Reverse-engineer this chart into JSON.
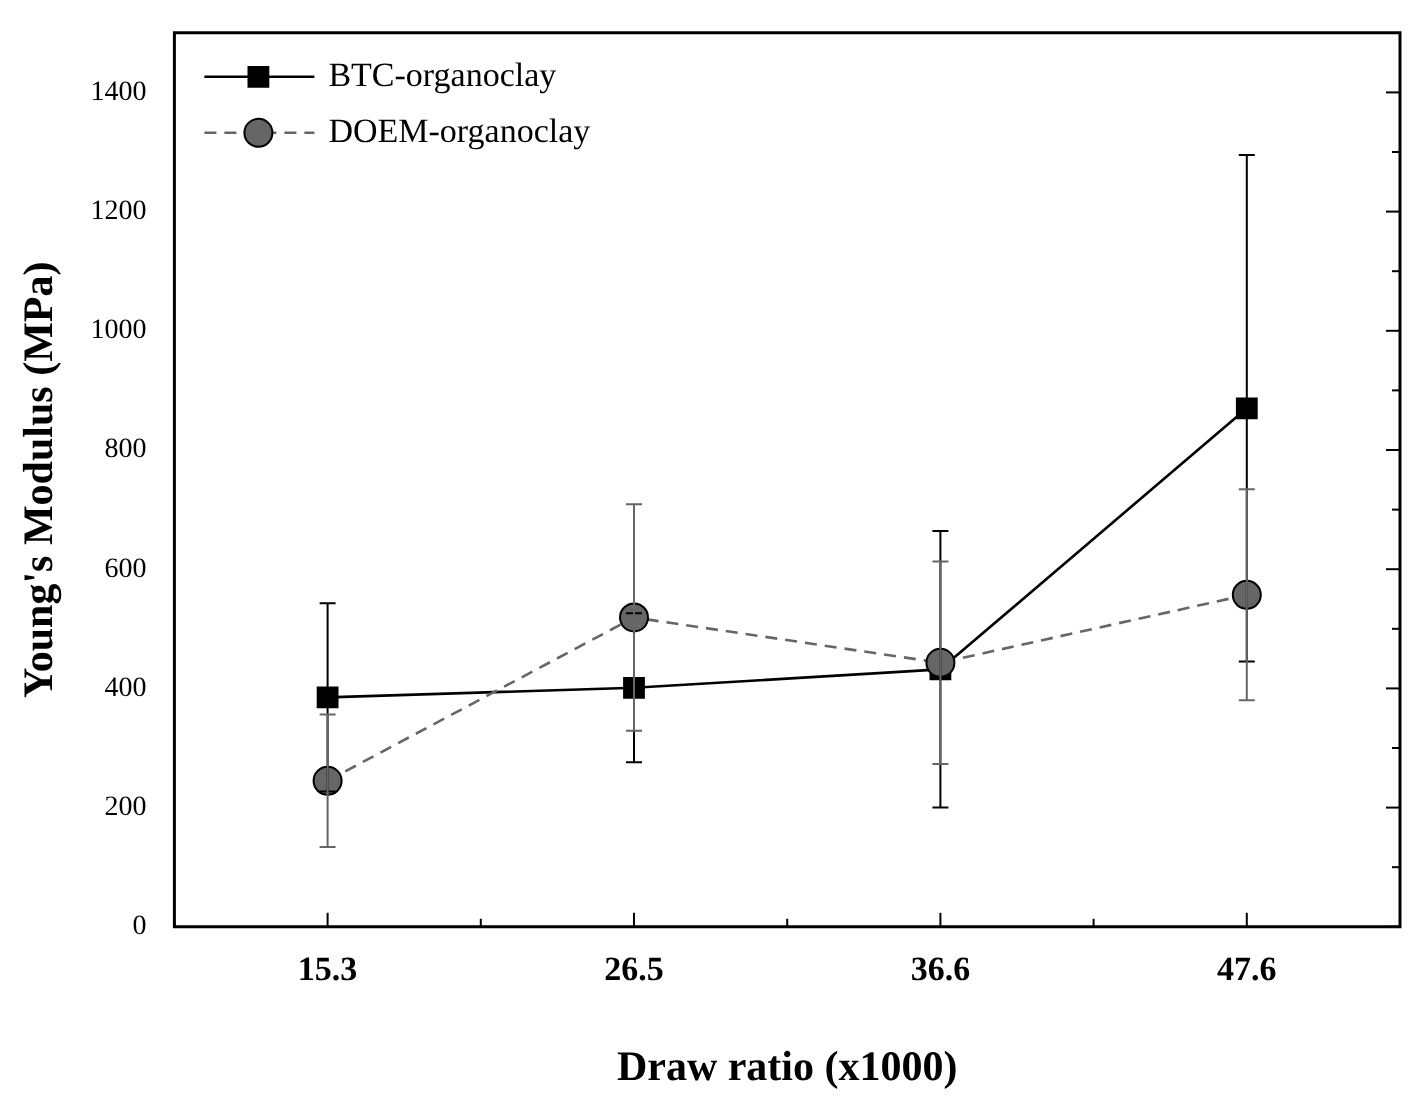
{
  "chart_data": {
    "type": "line",
    "xlabel": "Draw ratio (x1000)",
    "ylabel": "Young's Modulus (MPa)",
    "categories": [
      "15.3",
      "26.5",
      "36.6",
      "47.6"
    ],
    "ylim": [
      0,
      1500
    ],
    "yticks": [
      0,
      {
        "value": 100,
        "label": null
      },
      200,
      {
        "value": 300,
        "label": null
      },
      400,
      {
        "value": 500,
        "label": null
      },
      600,
      {
        "value": 700,
        "label": null
      },
      800,
      {
        "value": 900,
        "label": null
      },
      1000,
      {
        "value": 1100,
        "label": null
      },
      1200,
      {
        "value": 1300,
        "label": null
      },
      1400
    ],
    "legend": "top left",
    "grid": false,
    "series": [
      {
        "name": "BTC-organoclay",
        "color": "#000000",
        "marker": "square",
        "line_style": "solid",
        "values": [
          385,
          401,
          432,
          870
        ],
        "errors": [
          158,
          125,
          232,
          425
        ]
      },
      {
        "name": "DOEM-organoclay",
        "color": "#666666",
        "marker": "circle",
        "line_style": "dashed",
        "values": [
          245,
          519,
          443,
          557
        ],
        "errors": [
          111,
          190,
          170,
          177
        ]
      }
    ]
  }
}
